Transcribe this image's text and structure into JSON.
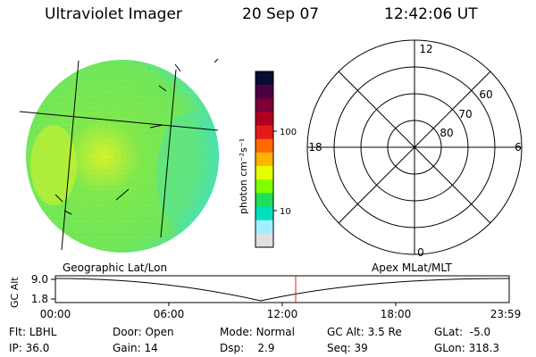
{
  "header": {
    "title": "Ultraviolet Imager",
    "date": "20 Sep 07",
    "time": "12:42:06 UT"
  },
  "colorbar": {
    "unit_label": "photon cm⁻²s⁻¹",
    "ticks": [
      "100",
      "10"
    ],
    "colors": [
      "#0b0b35",
      "#4b0045",
      "#7a0036",
      "#b00022",
      "#e31a1c",
      "#ff6a00",
      "#ffb400",
      "#e6ff00",
      "#7fff00",
      "#1ee05a",
      "#00e0c0",
      "#9ff0ff",
      "#e0e0e0"
    ]
  },
  "image": {
    "label": "Geographic Lat/Lon",
    "colors": {
      "base": "#7ee84c",
      "edge": "#3fe0c8",
      "bright": "#d8f22a",
      "grid": "#000000"
    }
  },
  "polar": {
    "label": "Apex MLat/MLT",
    "mlt_labels": {
      "top": "12",
      "left": "18",
      "right": "6",
      "bottom": "0"
    },
    "lat_labels": [
      "60",
      "70",
      "80"
    ]
  },
  "altitude_plot": {
    "ylabel": "GC Alt",
    "yticks": [
      "9.0",
      "1.8"
    ],
    "xticks": [
      "00:00",
      "06:00",
      "12:00",
      "18:00",
      "23:59"
    ],
    "marker_time": "12:42",
    "marker_color": "#e02020"
  },
  "status": {
    "filter_label": "Flt:",
    "filter": "LBHL",
    "door_label": "Door:",
    "door": "Open",
    "mode_label": "Mode:",
    "mode": "Normal",
    "gcalt_label": "GC Alt:",
    "gcalt": "3.5 Re",
    "glat_label": "GLat:",
    "glat": "-5.0",
    "ip_label": "IP:",
    "ip": "36.0",
    "gain_label": "Gain:",
    "gain": "14",
    "dsp_label": "Dsp:",
    "dsp": "2.9",
    "seq_label": "Seq:",
    "seq": "39",
    "glon_label": "GLon:",
    "glon": "318.3"
  }
}
